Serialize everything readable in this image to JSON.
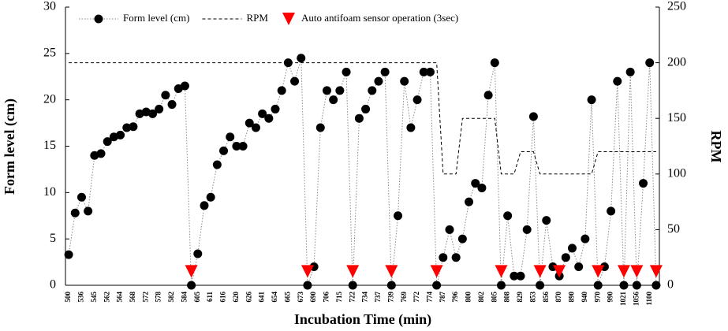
{
  "chart_data": {
    "type": "line",
    "xlabel": "Incubation  Time (min)",
    "ylabel": "Form level (cm)",
    "y2label": "RPM",
    "categories": [
      "500",
      null,
      "536",
      null,
      "545",
      null,
      "562",
      null,
      "564",
      null,
      "568",
      null,
      "572",
      null,
      "578",
      null,
      "582",
      null,
      "584",
      null,
      "605",
      null,
      "611",
      null,
      "616",
      null,
      "620",
      null,
      "626",
      null,
      "641",
      null,
      "654",
      null,
      "665",
      null,
      "673",
      null,
      "690",
      null,
      "706",
      null,
      "715",
      null,
      "722",
      null,
      "734",
      null,
      "737",
      null,
      "739",
      null,
      "769",
      null,
      "772",
      null,
      "774",
      null,
      "787",
      null,
      "796",
      null,
      "800",
      null,
      "802",
      null,
      "805",
      null,
      "808",
      null,
      "829",
      null,
      "853",
      null,
      "856",
      null,
      "870",
      null,
      "890",
      null,
      "940",
      null,
      "970",
      null,
      "990",
      null,
      "1021",
      null,
      "1056",
      null,
      "1100",
      null
    ],
    "series": [
      {
        "name": "Form level (cm)",
        "color": "#000000",
        "marker": "circle",
        "line": "dotted",
        "values": [
          3.3,
          7.8,
          9.5,
          8,
          14,
          14.2,
          15.5,
          16,
          16.2,
          17,
          17.1,
          18.5,
          18.7,
          18.5,
          19,
          20.5,
          19.5,
          21.2,
          21.5,
          0,
          3.4,
          8.6,
          9.5,
          13,
          14.5,
          16,
          15,
          15,
          17.5,
          17,
          18.5,
          18,
          19,
          21,
          24,
          22,
          24.5,
          0,
          2,
          17,
          21,
          20,
          21,
          23,
          0,
          18,
          19,
          21,
          22,
          23,
          0,
          7.5,
          22,
          17,
          20,
          23,
          23,
          0,
          3,
          6,
          3,
          5,
          9,
          11,
          10.5,
          20.5,
          24,
          0,
          7.5,
          1,
          1,
          6,
          18.2,
          0,
          7,
          2,
          1,
          3,
          4,
          2,
          5,
          20,
          0,
          2,
          8,
          22,
          0,
          23,
          0,
          11,
          24,
          0
        ]
      },
      {
        "name": "RPM",
        "color": "#000000",
        "line": "dashed",
        "axis": "y2",
        "values": [
          200,
          200,
          200,
          200,
          200,
          200,
          200,
          200,
          200,
          200,
          200,
          200,
          200,
          200,
          200,
          200,
          200,
          200,
          200,
          200,
          200,
          200,
          200,
          200,
          200,
          200,
          200,
          200,
          200,
          200,
          200,
          200,
          200,
          200,
          200,
          200,
          200,
          200,
          200,
          200,
          200,
          200,
          200,
          200,
          200,
          200,
          200,
          200,
          200,
          200,
          200,
          200,
          200,
          200,
          200,
          200,
          200,
          200,
          100,
          100,
          100,
          150,
          150,
          150,
          150,
          150,
          150,
          100,
          100,
          100,
          120,
          120,
          120,
          100,
          100,
          100,
          100,
          100,
          100,
          100,
          100,
          100,
          120,
          120,
          120,
          120,
          120,
          120,
          120,
          120,
          120,
          120
        ]
      },
      {
        "name": "Auto antifoam  sensor operation (3sec)",
        "color": "#ff0000",
        "marker": "triangle",
        "values": [
          null,
          null,
          null,
          null,
          null,
          null,
          null,
          null,
          null,
          null,
          null,
          null,
          null,
          null,
          null,
          null,
          null,
          null,
          null,
          1.5,
          null,
          null,
          null,
          null,
          null,
          null,
          null,
          null,
          null,
          null,
          null,
          null,
          null,
          null,
          null,
          null,
          null,
          1.5,
          null,
          null,
          null,
          null,
          null,
          null,
          1.5,
          null,
          null,
          null,
          null,
          null,
          1.5,
          null,
          null,
          null,
          null,
          null,
          null,
          1.5,
          null,
          null,
          null,
          null,
          null,
          null,
          null,
          null,
          null,
          1.5,
          null,
          null,
          null,
          null,
          null,
          1.5,
          null,
          null,
          1.5,
          null,
          null,
          null,
          null,
          null,
          1.5,
          null,
          null,
          null,
          1.5,
          null,
          1.5,
          null,
          null,
          1.5
        ]
      }
    ],
    "ylim": [
      0,
      30
    ],
    "yticks": [
      0,
      5,
      10,
      15,
      20,
      25,
      30
    ],
    "y2lim": [
      0,
      250
    ],
    "y2ticks": [
      0,
      50,
      100,
      150,
      200,
      250
    ],
    "legend": "top"
  }
}
